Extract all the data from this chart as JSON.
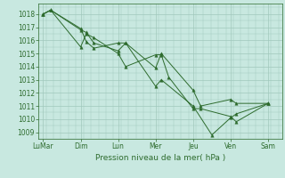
{
  "xlabel": "Pression niveau de la mer( hPa )",
  "background_color": "#c8e8e0",
  "line_color": "#2d6b2d",
  "grid_color": "#a0c8bc",
  "ylim": [
    1008.5,
    1018.8
  ],
  "yticks": [
    1009,
    1010,
    1011,
    1012,
    1013,
    1014,
    1015,
    1016,
    1017,
    1018
  ],
  "day_labels": [
    "LuMar",
    "Dim",
    "Lun",
    "Mer",
    "Jeu",
    "Ven",
    "Sam"
  ],
  "day_positions": [
    0,
    40,
    80,
    120,
    160,
    200,
    240
  ],
  "xlim": [
    -5,
    255
  ],
  "series1_x": [
    0,
    8,
    40,
    46,
    54,
    80,
    88,
    120,
    126,
    160,
    168,
    200,
    206,
    240
  ],
  "series1_y": [
    1018.0,
    1018.3,
    1016.8,
    1016.6,
    1015.8,
    1015.2,
    1015.8,
    1013.9,
    1015.0,
    1012.2,
    1011.0,
    1011.5,
    1011.2,
    1011.2
  ],
  "series2_x": [
    0,
    8,
    40,
    46,
    54,
    80,
    88,
    120,
    126,
    134,
    160,
    168,
    200,
    206,
    240
  ],
  "series2_y": [
    1018.0,
    1018.3,
    1015.5,
    1016.5,
    1016.2,
    1015.0,
    1014.0,
    1014.9,
    1014.9,
    1013.2,
    1010.8,
    1010.8,
    1010.2,
    1009.8,
    1011.2
  ],
  "series3_x": [
    0,
    8,
    40,
    46,
    54,
    80,
    88,
    120,
    126,
    160,
    180,
    200,
    206,
    240
  ],
  "series3_y": [
    1018.0,
    1018.3,
    1016.9,
    1015.9,
    1015.4,
    1015.8,
    1015.8,
    1012.5,
    1013.0,
    1011.0,
    1008.8,
    1010.1,
    1010.4,
    1011.2
  ],
  "ytick_fontsize": 5.5,
  "xtick_fontsize": 5.5,
  "xlabel_fontsize": 6.5
}
